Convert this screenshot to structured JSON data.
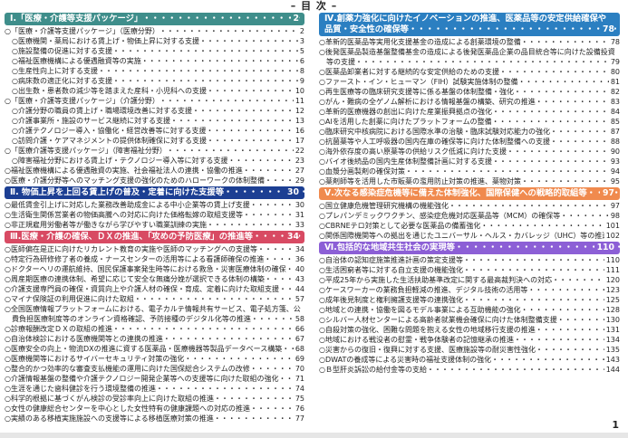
{
  "title": "– 目 次 –",
  "page_number": "1",
  "columns": [
    [
      {
        "header": "Ⅰ.「医療・介護等支援パッケージ」",
        "page": "2",
        "color": "#3f8e8b",
        "items": [
          {
            "text": "○「医療・介護等支援パッケージ」（医療分野）",
            "page": "2",
            "level": 1
          },
          {
            "text": "○医療機関・薬局における賃上げ・物価上昇に対する支援",
            "page": "3",
            "level": 2
          },
          {
            "text": "○施設整備の促進に対する支援",
            "page": "5",
            "level": 2
          },
          {
            "text": "○福祉医療機構による優遇融資等の実施",
            "page": "6",
            "level": 2
          },
          {
            "text": "○生産性向上に対する支援",
            "page": "8",
            "level": 2
          },
          {
            "text": "○病床数の適正化に対する支援",
            "page": "9",
            "level": 2
          },
          {
            "text": "○出生数・患者数の減少等を踏まえた産科・小児科への支援",
            "page": "10",
            "level": 2
          },
          {
            "text": "○「医療・介護等支援パッケージ」（介護分野）",
            "page": "11",
            "level": 1
          },
          {
            "text": "○介護分野の職員の賃上げ・職場環境改善に対する支援",
            "page": "12",
            "level": 2
          },
          {
            "text": "○介護事業所・施設のサービス継続に対する支援",
            "page": "13",
            "level": 2
          },
          {
            "text": "○介護テクノロジー導入・協働化・経営改善等に対する支援",
            "page": "16",
            "level": 2
          },
          {
            "text": "○訪問介護・ケアマネジメントの提供体制確保に対する支援",
            "page": "17",
            "level": 2
          },
          {
            "text": "○「医療介護等支援パッケージ」（障害福祉分野）",
            "page": "22",
            "level": 1
          },
          {
            "text": "○障害福祉分野における賃上げ・テクノロジー導入等に対する支援",
            "page": "23",
            "level": 2
          },
          {
            "text": "○福祉医療機構による優遇融資の実施、社会福祉法人の連携・協働の推進",
            "page": "27",
            "level": 1
          },
          {
            "text": "○医療・介護分野等へのマッチング支援の強化のためのハローワークの体制整備",
            "page": "29",
            "level": 1
          }
        ]
      },
      {
        "header": "Ⅱ. 物価上昇を上回る賃上げの普及・定着に向けた支援等",
        "page": "30",
        "color": "#1c3f93",
        "items": [
          {
            "text": "○最低賃金引上げに対応した業務改善助成金による中小企業等の賃上げ支援",
            "page": "30",
            "level": 1
          },
          {
            "text": "○生活衛生関係営業者の物価高騰への対応に向けた価格転嫁の取組支援等",
            "page": "31",
            "level": 1
          },
          {
            "text": "○非正規雇用労働者等が働きながら学びやすい職業訓練の実施",
            "page": "33",
            "level": 1
          }
        ]
      },
      {
        "header": "Ⅲ.医療・介護の確保、ＤＸの推進、「攻めの予防医療」の推進等",
        "page": "34",
        "color": "#d84a63",
        "items": [
          {
            "text": "○医師偏在是正に向けたリカレント教育の実施や医師のマッチングへの支援等",
            "page": "34",
            "level": 1
          },
          {
            "text": "○特定行為研修修了者の養成・ナースセンターの活用等による看護師確保の推進",
            "page": "36",
            "level": 1
          },
          {
            "text": "○ドクターヘリの運航維持、国民保護事案発生時等における救急・災害医療体制の確保",
            "page": "40",
            "level": 1
          },
          {
            "text": "○周産期医療の連携体制、希望に応じて安全な無痛分娩が選択できる体制の構築",
            "page": "43",
            "level": 1
          },
          {
            "text": "○介護支援専門員の確保・資質向上や介護人材の確保・育成、定着に向けた取組支援",
            "page": "44",
            "level": 1
          },
          {
            "text": "○マイナ保険証の利用促進に向けた取組",
            "page": "57",
            "level": 1
          },
          {
            "text": "○全国医療情報プラットフォームにおける、電子カルテ情報共有サービス、電子処方箋、公費負担医療制度等のオンライン資格確認、予防接種のデジタル化等の推進",
            "page": "58",
            "level": 1
          },
          {
            "text": "○診療報酬改定ＤＸの取組の推進",
            "page": "66",
            "level": 1
          },
          {
            "text": "○自治体検診における医療機関等との連携の推進",
            "page": "67",
            "level": 1
          },
          {
            "text": "○医療安全の向上・物流DXの推進に資する医薬品・医療機器等製品データベース構築",
            "page": "68",
            "level": 1
          },
          {
            "text": "○医療機関等におけるサイバーセキュリティ対策の強化",
            "page": "69",
            "level": 1
          },
          {
            "text": "○整合的かつ効率的な審査支払機能の運用に向けた国保総合システムの改修",
            "page": "70",
            "level": 1
          },
          {
            "text": "○介護情報基盤の整備や介護テクノロジー開発企業等への支援等に向けた取組の強化",
            "page": "71",
            "level": 1
          },
          {
            "text": "○生涯を通じた歯科健診を行う環境整備の推進",
            "page": "74",
            "level": 1
          },
          {
            "text": "○科学的根拠に基づくがん検診の受診率向上に向けた取組の推進",
            "page": "75",
            "level": 1
          },
          {
            "text": "○女性の健康総合センターを中心とした女性特有の健康課題への対応の推進",
            "page": "76",
            "level": 1
          },
          {
            "text": "○実績のある移植実施施設への支援等による移植医療対策の推進",
            "page": "77",
            "level": 1
          }
        ]
      }
    ],
    [
      {
        "header": "Ⅳ.創薬力強化に向けたイノベーションの推進、医薬品等の安定供給確保や品質・安全性の確保等",
        "page": "78",
        "color": "#2b7fc1",
        "items": [
          {
            "text": "○革新的医薬品等実用化支援基金の造成による創薬環境の整備",
            "page": "78",
            "level": 1
          },
          {
            "text": "○後発医薬品製造基盤整備基金の造成による後発医薬品企業の品目統合等に向けた設備投資等の支援",
            "page": "79",
            "level": 1
          },
          {
            "text": "○医薬品卸業者に対する継続的な安定供給のための支援",
            "page": "80",
            "level": 1
          },
          {
            "text": "○ファースト・イン・ヒューマン（FIH）試験実施体制の整備",
            "page": "81",
            "level": 1
          },
          {
            "text": "○再生医療等の臨床研究支援等に係る基盤の体制整備・強化",
            "page": "82",
            "level": 1
          },
          {
            "text": "○がん・難病の全ゲノム解析における情報基盤の構築、研究の推進",
            "page": "83",
            "level": 1
          },
          {
            "text": "○革新的医療機器の創出に向けた産業振興拠点の強化",
            "page": "84",
            "level": 1
          },
          {
            "text": "○AIを活用した創薬に向けたプラットフォームの整備",
            "page": "85",
            "level": 1
          },
          {
            "text": "○臨床研究中核病院における国際水準の治験・臨床試験対応能力の強化",
            "page": "87",
            "level": 1
          },
          {
            "text": "○抗菌薬等や人工呼吸器の国内在庫の確保等に向けた体制整備への支援",
            "page": "88",
            "level": 1
          },
          {
            "text": "○海外依存度の高い原薬等の供給リスク低減に向けた支援",
            "page": "90",
            "level": 1
          },
          {
            "text": "○バイオ後続品の国内生産体制整備計画に対する支援",
            "page": "93",
            "level": 1
          },
          {
            "text": "○血漿分画製剤の確保対策",
            "page": "94",
            "level": 1
          },
          {
            "text": "○薬剤師等を活用した市販薬の濫用防止対策の推進、薬物対策",
            "page": "95",
            "level": 1
          }
        ]
      },
      {
        "header": "Ⅴ.次なる感染症危機等に備えた体制強化、国際保健への戦略的取組等",
        "page": "97",
        "color": "#f08a4e",
        "items": [
          {
            "text": "○国立健康危機管理研究機構の機能強化",
            "page": "97",
            "level": 1
          },
          {
            "text": "○プレパンデミックワクチン、感染症危機対応医薬品等（MCM）の確保等",
            "page": "98",
            "level": 1
          },
          {
            "text": "○CBRNEテロ対策として必要な医薬品の備蓄強化",
            "page": "101",
            "level": 1
          },
          {
            "text": "○関係国際機関等への拠出を通じたユニバーサル・ヘルス・カバレッジ（UHC）等の推進",
            "page": "102",
            "level": 1
          }
        ]
      },
      {
        "header": "Ⅵ.包括的な地域共生社会の実現等",
        "page": "110",
        "color": "#8c5fd6",
        "items": [
          {
            "text": "○自治体の認知症施策推進計画の策定支援等",
            "page": "110",
            "level": 1
          },
          {
            "text": "○生活困窮者等に対する自立支援の機能強化",
            "page": "111",
            "level": 1
          },
          {
            "text": "○平成25年から実施した生活扶助基準改定に関する最高裁判決への対応",
            "page": "120",
            "level": 1
          },
          {
            "text": "○ケースワーカーの業務負担軽減の推進、デジタル技術の活用等",
            "page": "123",
            "level": 1
          },
          {
            "text": "○成年後見制度と権利擁護支援等の連携強化",
            "page": "125",
            "level": 1
          },
          {
            "text": "○地域との連携・協働を図るモデル事業による互助機能の強化",
            "page": "128",
            "level": 1
          },
          {
            "text": "○シルバー人材センターによる高齢者就業機会確保に向けた体制整備支援",
            "page": "130",
            "level": 1
          },
          {
            "text": "○自殺対策の強化、困難な問題を抱える女性の地域移行支援の推進",
            "page": "131",
            "level": 1
          },
          {
            "text": "○地域における戦没者の慰霊・戦争体験者の記憶継承の推進",
            "page": "134",
            "level": 1
          },
          {
            "text": "○災害からの復旧・復興に対する支援、医療施設等の耐災害性強化",
            "page": "135",
            "level": 1
          },
          {
            "text": "○DWATの養成等による災害時の福祉支援体制の強化",
            "page": "143",
            "level": 1
          },
          {
            "text": "○Ｂ型肝炎訴訟の給付金等の支給",
            "page": "144",
            "level": 1
          }
        ]
      }
    ]
  ]
}
